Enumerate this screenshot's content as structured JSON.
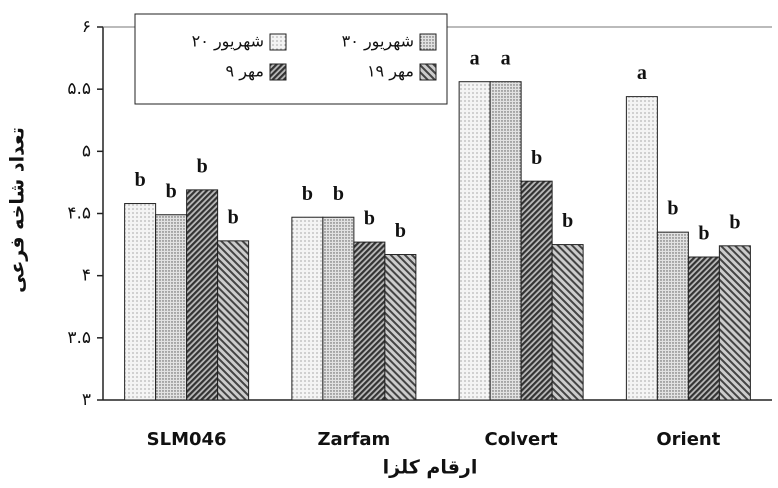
{
  "chart_data": {
    "type": "bar",
    "y_label": "تعداد شاخه فرعی",
    "x_label": "ارقام کلزا",
    "categories": [
      "SLM046",
      "Zarfam",
      "Colvert",
      "Orient"
    ],
    "series": [
      {
        "name": "شهریور ۲۰",
        "color": "#f2f2f2",
        "values": [
          4.58,
          4.47,
          5.56,
          5.44
        ],
        "letters": [
          "b",
          "b",
          "a",
          "a"
        ]
      },
      {
        "name": "شهریور ۳۰",
        "color": "#d8d8d8",
        "values": [
          4.49,
          4.47,
          5.56,
          4.35
        ],
        "letters": [
          "b",
          "b",
          "a",
          "b"
        ]
      },
      {
        "name": "مهر ۹",
        "color": "#555555",
        "values": [
          4.69,
          4.27,
          4.76,
          4.15
        ],
        "letters": [
          "b",
          "b",
          "b",
          "b"
        ]
      },
      {
        "name": "مهر ۱۹",
        "color": "#888888",
        "values": [
          4.28,
          4.17,
          4.25,
          4.24
        ],
        "letters": [
          "b",
          "b",
          "b",
          "b"
        ]
      }
    ],
    "ylim": [
      3,
      6
    ],
    "yticks": [
      {
        "value": 3,
        "label": "۳"
      },
      {
        "value": 3.5,
        "label": "۳.۵"
      },
      {
        "value": 4,
        "label": "۴"
      },
      {
        "value": 4.5,
        "label": "۴.۵"
      },
      {
        "value": 5,
        "label": "۵"
      },
      {
        "value": 5.5,
        "label": "۵.۵"
      },
      {
        "value": 6,
        "label": "۶"
      }
    ],
    "grid": false,
    "legend": "top-left"
  }
}
